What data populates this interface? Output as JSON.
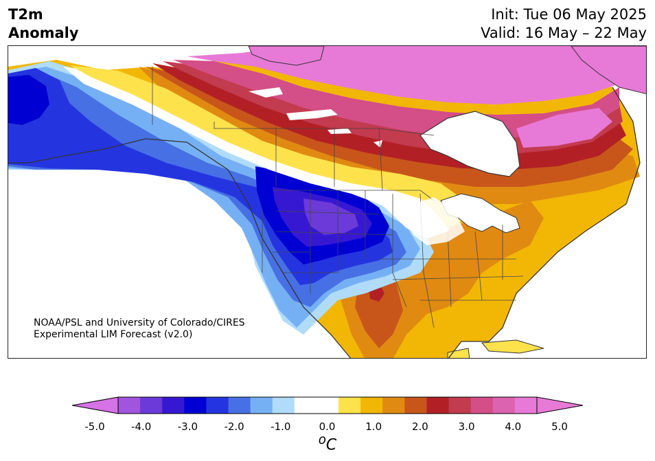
{
  "header": {
    "title_line1": "T2m",
    "title_line2": "Anomaly",
    "init_text": "Init: Tue 06 May 2025",
    "valid_text": "Valid: 16 May – 22 May"
  },
  "map": {
    "credit_line1": "NOAA/PSL and University of Colorado/CIRES",
    "credit_line2": "Experimental LIM Forecast (v2.0)",
    "region": "North America"
  },
  "colorbar": {
    "unit": "oC",
    "unit_base": "C",
    "unit_sup": "o",
    "tick_labels": [
      "-5.0",
      "-4.0",
      "-3.0",
      "-2.0",
      "-1.0",
      "0.0",
      "1.0",
      "2.0",
      "3.0",
      "4.0",
      "5.0"
    ],
    "tick_values": [
      -5,
      -4,
      -3,
      -2,
      -1,
      0,
      1,
      2,
      3,
      4,
      5
    ],
    "range": [
      -5.0,
      5.0
    ],
    "colors": [
      "#a154dd",
      "#6b3ad9",
      "#3718d2",
      "#0000d2",
      "#2435e0",
      "#4770e4",
      "#76b0f4",
      "#b0dcfa",
      "#ffffff",
      "#ffffff",
      "#fde24c",
      "#f2b705",
      "#e08a12",
      "#c8561b",
      "#b22025",
      "#c23b4f",
      "#d44e87",
      "#dc63b0",
      "#e77ad6"
    ],
    "extend_low_color": "#d572e6",
    "extend_high_color": "#e77ad6"
  },
  "palette": {
    "ocean": "#ffffff",
    "coast": "#333333",
    "borders": "#444444"
  }
}
